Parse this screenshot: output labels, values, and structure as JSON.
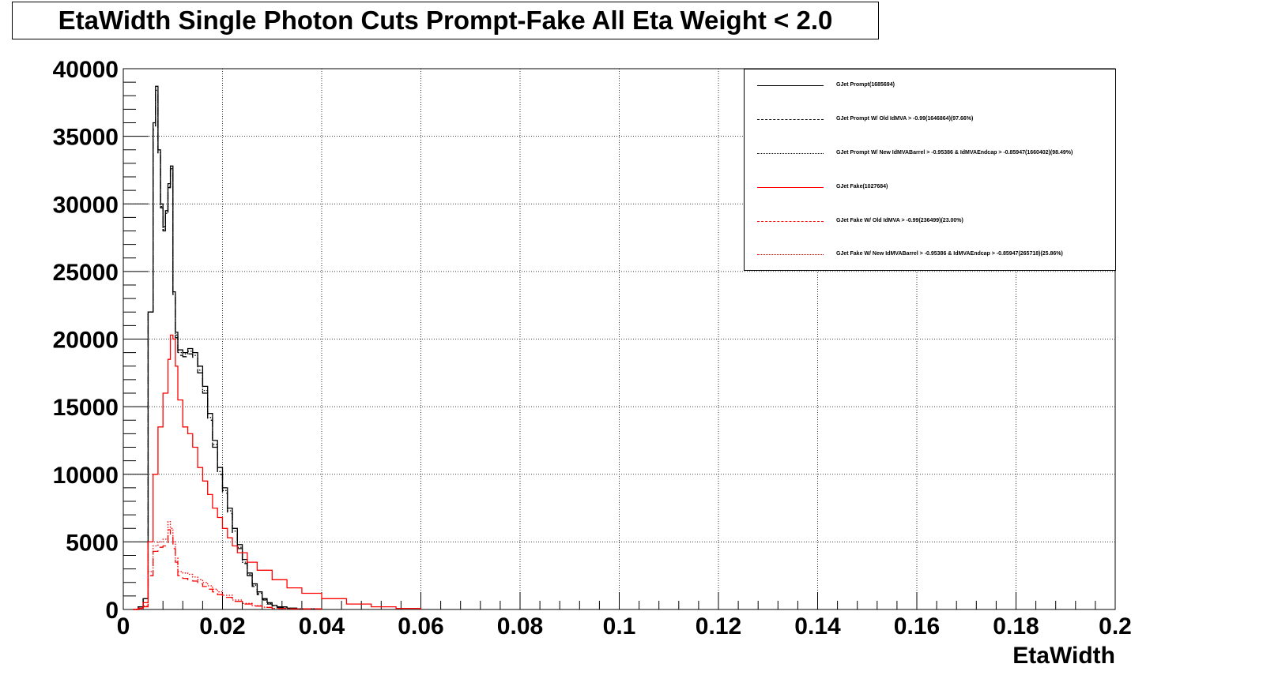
{
  "title": "EtaWidth Single Photon Cuts Prompt-Fake All Eta Weight < 2.0",
  "colors": {
    "prompt": "#000000",
    "fake": "#ff0000",
    "grid": "#000000"
  },
  "chart_data": {
    "type": "line",
    "title": "EtaWidth Single Photon Cuts Prompt-Fake All Eta Weight < 2.0",
    "xlabel": "EtaWidth",
    "ylabel": "",
    "xlim": [
      0,
      0.2
    ],
    "ylim": [
      0,
      40000
    ],
    "grid": true,
    "legend_position": "top-right",
    "x_ticks": [
      "0",
      "0.02",
      "0.04",
      "0.06",
      "0.08",
      "0.1",
      "0.12",
      "0.14",
      "0.16",
      "0.18",
      "0.2"
    ],
    "y_ticks": [
      "0",
      "5000",
      "10000",
      "15000",
      "20000",
      "25000",
      "30000",
      "35000",
      "40000"
    ],
    "series": [
      {
        "name": "GJet Prompt(1685694)",
        "color": "#000000",
        "dash": "solid",
        "points": [
          [
            0.002,
            0
          ],
          [
            0.003,
            200
          ],
          [
            0.004,
            800
          ],
          [
            0.005,
            22000
          ],
          [
            0.006,
            36000
          ],
          [
            0.0065,
            38700
          ],
          [
            0.007,
            34000
          ],
          [
            0.0075,
            30000
          ],
          [
            0.008,
            28300
          ],
          [
            0.0085,
            29500
          ],
          [
            0.009,
            31500
          ],
          [
            0.0095,
            32800
          ],
          [
            0.01,
            23500
          ],
          [
            0.0105,
            20500
          ],
          [
            0.011,
            19200
          ],
          [
            0.012,
            19000
          ],
          [
            0.013,
            19300
          ],
          [
            0.014,
            19000
          ],
          [
            0.015,
            18000
          ],
          [
            0.016,
            16500
          ],
          [
            0.017,
            14500
          ],
          [
            0.018,
            12500
          ],
          [
            0.019,
            10500
          ],
          [
            0.02,
            9000
          ],
          [
            0.021,
            7500
          ],
          [
            0.022,
            6000
          ],
          [
            0.023,
            4800
          ],
          [
            0.024,
            3700
          ],
          [
            0.025,
            2700
          ],
          [
            0.026,
            1900
          ],
          [
            0.027,
            1300
          ],
          [
            0.028,
            800
          ],
          [
            0.029,
            500
          ],
          [
            0.03,
            300
          ],
          [
            0.031,
            200
          ],
          [
            0.033,
            100
          ],
          [
            0.035,
            50
          ],
          [
            0.04,
            0
          ]
        ]
      },
      {
        "name": "GJet Prompt W/ Old IdMVA > -0.99(1646864)(97.66%)",
        "color": "#000000",
        "dash": "dashed",
        "points": [
          [
            0.002,
            0
          ],
          [
            0.003,
            200
          ],
          [
            0.004,
            800
          ],
          [
            0.005,
            22000
          ],
          [
            0.006,
            35500
          ],
          [
            0.0065,
            38200
          ],
          [
            0.007,
            33600
          ],
          [
            0.0075,
            29700
          ],
          [
            0.008,
            28000
          ],
          [
            0.0085,
            29200
          ],
          [
            0.009,
            31200
          ],
          [
            0.0095,
            32500
          ],
          [
            0.01,
            23200
          ],
          [
            0.0105,
            20100
          ],
          [
            0.011,
            18800
          ],
          [
            0.012,
            18700
          ],
          [
            0.013,
            18900
          ],
          [
            0.014,
            18600
          ],
          [
            0.015,
            17500
          ],
          [
            0.016,
            16000
          ],
          [
            0.017,
            14000
          ],
          [
            0.018,
            12000
          ],
          [
            0.019,
            10000
          ],
          [
            0.02,
            8600
          ],
          [
            0.021,
            7100
          ],
          [
            0.022,
            5700
          ],
          [
            0.023,
            4500
          ],
          [
            0.024,
            3400
          ],
          [
            0.025,
            2500
          ],
          [
            0.026,
            1700
          ],
          [
            0.027,
            1100
          ],
          [
            0.028,
            700
          ],
          [
            0.029,
            400
          ],
          [
            0.03,
            250
          ],
          [
            0.031,
            150
          ],
          [
            0.033,
            80
          ],
          [
            0.035,
            40
          ],
          [
            0.04,
            0
          ]
        ]
      },
      {
        "name": "GJet Prompt W/ New IdMVABarrel > -0.95386 & IdMVAEndcap > -0.85947(1660402)(98.49%)",
        "color": "#000000",
        "dash": "dotted",
        "points": [
          [
            0.002,
            0
          ],
          [
            0.003,
            200
          ],
          [
            0.004,
            800
          ],
          [
            0.005,
            22000
          ],
          [
            0.006,
            35800
          ],
          [
            0.0065,
            38400
          ],
          [
            0.007,
            33800
          ],
          [
            0.0075,
            29800
          ],
          [
            0.008,
            28100
          ],
          [
            0.0085,
            29300
          ],
          [
            0.009,
            31300
          ],
          [
            0.0095,
            32600
          ],
          [
            0.01,
            23300
          ],
          [
            0.0105,
            20300
          ],
          [
            0.011,
            19000
          ],
          [
            0.012,
            18900
          ],
          [
            0.013,
            19100
          ],
          [
            0.014,
            18800
          ],
          [
            0.015,
            17700
          ],
          [
            0.016,
            16200
          ],
          [
            0.017,
            14200
          ],
          [
            0.018,
            12200
          ],
          [
            0.019,
            10200
          ],
          [
            0.02,
            8800
          ],
          [
            0.021,
            7300
          ],
          [
            0.022,
            5800
          ],
          [
            0.023,
            4600
          ],
          [
            0.024,
            3500
          ],
          [
            0.025,
            2600
          ],
          [
            0.026,
            1800
          ],
          [
            0.027,
            1200
          ],
          [
            0.028,
            750
          ],
          [
            0.029,
            450
          ],
          [
            0.03,
            280
          ],
          [
            0.031,
            170
          ],
          [
            0.033,
            90
          ],
          [
            0.035,
            45
          ],
          [
            0.04,
            0
          ]
        ]
      },
      {
        "name": "GJet Fake(1027684)",
        "color": "#ff0000",
        "dash": "solid",
        "points": [
          [
            0.002,
            0
          ],
          [
            0.003,
            100
          ],
          [
            0.004,
            500
          ],
          [
            0.005,
            5000
          ],
          [
            0.006,
            10000
          ],
          [
            0.007,
            13500
          ],
          [
            0.008,
            16000
          ],
          [
            0.009,
            18500
          ],
          [
            0.0095,
            20300
          ],
          [
            0.01,
            20000
          ],
          [
            0.0105,
            18000
          ],
          [
            0.011,
            15500
          ],
          [
            0.012,
            13500
          ],
          [
            0.013,
            13000
          ],
          [
            0.014,
            12000
          ],
          [
            0.015,
            10500
          ],
          [
            0.016,
            9500
          ],
          [
            0.017,
            8500
          ],
          [
            0.018,
            7500
          ],
          [
            0.019,
            6800
          ],
          [
            0.02,
            6000
          ],
          [
            0.021,
            5300
          ],
          [
            0.022,
            4700
          ],
          [
            0.023,
            4200
          ],
          [
            0.025,
            3500
          ],
          [
            0.027,
            2900
          ],
          [
            0.03,
            2200
          ],
          [
            0.033,
            1600
          ],
          [
            0.036,
            1200
          ],
          [
            0.04,
            800
          ],
          [
            0.045,
            400
          ],
          [
            0.05,
            200
          ],
          [
            0.055,
            80
          ],
          [
            0.06,
            0
          ]
        ]
      },
      {
        "name": "GJet Fake W/ Old IdMVA > -0.99(236499)(23.00%)",
        "color": "#ff0000",
        "dash": "dashed",
        "points": [
          [
            0.002,
            0
          ],
          [
            0.003,
            50
          ],
          [
            0.004,
            200
          ],
          [
            0.005,
            2500
          ],
          [
            0.006,
            4300
          ],
          [
            0.007,
            4600
          ],
          [
            0.008,
            4700
          ],
          [
            0.009,
            5900
          ],
          [
            0.0095,
            5500
          ],
          [
            0.01,
            4500
          ],
          [
            0.0105,
            3500
          ],
          [
            0.011,
            2500
          ],
          [
            0.012,
            2300
          ],
          [
            0.013,
            2200
          ],
          [
            0.014,
            2100
          ],
          [
            0.015,
            1900
          ],
          [
            0.016,
            1700
          ],
          [
            0.017,
            1500
          ],
          [
            0.018,
            1300
          ],
          [
            0.019,
            1100
          ],
          [
            0.02,
            900
          ],
          [
            0.022,
            600
          ],
          [
            0.024,
            400
          ],
          [
            0.026,
            250
          ],
          [
            0.028,
            150
          ],
          [
            0.03,
            80
          ],
          [
            0.033,
            40
          ],
          [
            0.04,
            0
          ]
        ]
      },
      {
        "name": "GJet Fake W/ New IdMVABarrel > -0.95386 & IdMVAEndcap > -0.85947(265718)(25.86%)",
        "color": "#ff0000",
        "dash": "dotted",
        "points": [
          [
            0.002,
            0
          ],
          [
            0.003,
            50
          ],
          [
            0.004,
            250
          ],
          [
            0.005,
            2800
          ],
          [
            0.006,
            4700
          ],
          [
            0.007,
            5000
          ],
          [
            0.008,
            5200
          ],
          [
            0.009,
            6500
          ],
          [
            0.0095,
            6000
          ],
          [
            0.01,
            5000
          ],
          [
            0.0105,
            3800
          ],
          [
            0.011,
            2800
          ],
          [
            0.012,
            2700
          ],
          [
            0.013,
            2600
          ],
          [
            0.014,
            2400
          ],
          [
            0.015,
            2200
          ],
          [
            0.016,
            2000
          ],
          [
            0.017,
            1750
          ],
          [
            0.018,
            1500
          ],
          [
            0.019,
            1300
          ],
          [
            0.02,
            1050
          ],
          [
            0.022,
            700
          ],
          [
            0.024,
            450
          ],
          [
            0.026,
            280
          ],
          [
            0.028,
            170
          ],
          [
            0.03,
            90
          ],
          [
            0.033,
            45
          ],
          [
            0.04,
            0
          ]
        ]
      }
    ]
  }
}
